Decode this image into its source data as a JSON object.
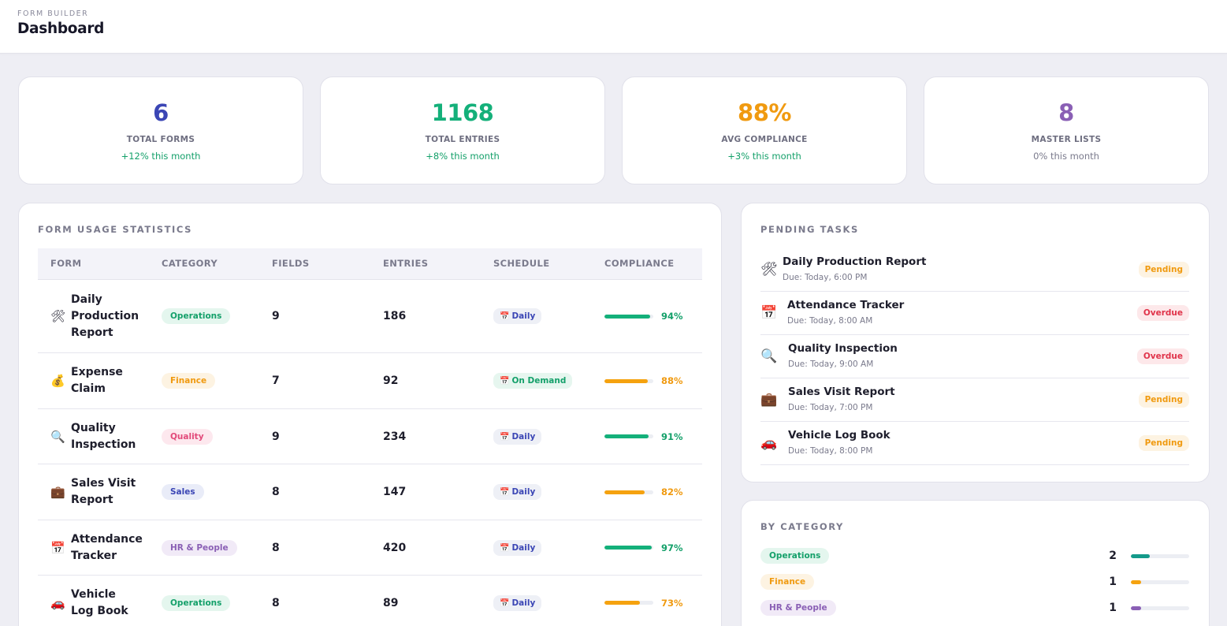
{
  "header": {
    "breadcrumb": "FORM BUILDER",
    "title": "Dashboard"
  },
  "stats": [
    {
      "value": "6",
      "label": "TOTAL FORMS",
      "change": "+12% this month",
      "color": "#3b46b5",
      "change_color": "#14a06a"
    },
    {
      "value": "1168",
      "label": "TOTAL ENTRIES",
      "change": "+8% this month",
      "color": "#14b07a",
      "change_color": "#14a06a"
    },
    {
      "value": "88%",
      "label": "AVG COMPLIANCE",
      "change": "+3% this month",
      "color": "#f09a10",
      "change_color": "#14a06a"
    },
    {
      "value": "8",
      "label": "MASTER LISTS",
      "change": "0% this month",
      "color": "#8a5fb5",
      "change_color": "#7a7a8c"
    }
  ],
  "usage": {
    "title": "FORM USAGE STATISTICS",
    "columns": [
      "FORM",
      "CATEGORY",
      "FIELDS",
      "ENTRIES",
      "SCHEDULE",
      "COMPLIANCE"
    ],
    "rows": [
      {
        "icon": "tools-icon",
        "glyph": "🛠",
        "name": "Daily Production Report",
        "category": "Operations",
        "cat_bg": "#e4f6ee",
        "cat_fg": "#14a06a",
        "fields": "9",
        "entries": "186",
        "schedule": "Daily",
        "compliance": "94%",
        "compliance_value": 0.94,
        "bar_color": "#14b07a"
      },
      {
        "icon": "money-bag-icon",
        "glyph": "💰",
        "name": "Expense Claim",
        "category": "Finance",
        "cat_bg": "#fdf3e2",
        "cat_fg": "#f09a10",
        "fields": "7",
        "entries": "92",
        "schedule": "On Demand",
        "compliance": "88%",
        "compliance_value": 0.88,
        "bar_color": "#f5a20f"
      },
      {
        "icon": "magnifier-icon",
        "glyph": "🔍",
        "name": "Quality Inspection",
        "category": "Quality",
        "cat_bg": "#fde8ee",
        "cat_fg": "#e24a7a",
        "fields": "9",
        "entries": "234",
        "schedule": "Daily",
        "compliance": "91%",
        "compliance_value": 0.91,
        "bar_color": "#14b07a"
      },
      {
        "icon": "briefcase-icon",
        "glyph": "💼",
        "name": "Sales Visit Report",
        "category": "Sales",
        "cat_bg": "#e9ecf8",
        "cat_fg": "#3b46b5",
        "fields": "8",
        "entries": "147",
        "schedule": "Daily",
        "compliance": "82%",
        "compliance_value": 0.82,
        "bar_color": "#f5a20f"
      },
      {
        "icon": "calendar-icon",
        "glyph": "📅",
        "name": "Attendance Tracker",
        "category": "HR & People",
        "cat_bg": "#f1eaf7",
        "cat_fg": "#8a5fb5",
        "fields": "8",
        "entries": "420",
        "schedule": "Daily",
        "compliance": "97%",
        "compliance_value": 0.97,
        "bar_color": "#14b07a"
      },
      {
        "icon": "car-icon",
        "glyph": "🚗",
        "name": "Vehicle Log Book",
        "category": "Operations",
        "cat_bg": "#e4f6ee",
        "cat_fg": "#14a06a",
        "fields": "8",
        "entries": "89",
        "schedule": "Daily",
        "compliance": "73%",
        "compliance_value": 0.73,
        "bar_color": "#f5a20f"
      }
    ]
  },
  "tasks": {
    "title": "PENDING TASKS",
    "items": [
      {
        "icon": "tools-icon",
        "glyph": "🛠",
        "name": "Daily Production Report",
        "due": "Due: Today, 6:00 PM",
        "status": "Pending",
        "status_bg": "#fdf3e2",
        "status_fg": "#f09a10"
      },
      {
        "icon": "calendar-icon",
        "glyph": "📅",
        "name": "Attendance Tracker",
        "due": "Due: Today, 8:00 AM",
        "status": "Overdue",
        "status_bg": "#fde8ea",
        "status_fg": "#e0334a"
      },
      {
        "icon": "magnifier-icon",
        "glyph": "🔍",
        "name": "Quality Inspection",
        "due": "Due: Today, 9:00 AM",
        "status": "Overdue",
        "status_bg": "#fde8ea",
        "status_fg": "#e0334a"
      },
      {
        "icon": "briefcase-icon",
        "glyph": "💼",
        "name": "Sales Visit Report",
        "due": "Due: Today, 7:00 PM",
        "status": "Pending",
        "status_bg": "#fdf3e2",
        "status_fg": "#f09a10"
      },
      {
        "icon": "car-icon",
        "glyph": "🚗",
        "name": "Vehicle Log Book",
        "due": "Due: Today, 8:00 PM",
        "status": "Pending",
        "status_bg": "#fdf3e2",
        "status_fg": "#f09a10"
      }
    ]
  },
  "categories": {
    "title": "BY CATEGORY",
    "items": [
      {
        "name": "Operations",
        "count": "2",
        "share": 0.33,
        "bg": "#e4f6ee",
        "fg": "#14a06a",
        "bar": "#149a8a"
      },
      {
        "name": "Finance",
        "count": "1",
        "share": 0.17,
        "bg": "#fdf3e2",
        "fg": "#f09a10",
        "bar": "#f5a20f"
      },
      {
        "name": "HR & People",
        "count": "1",
        "share": 0.17,
        "bg": "#f1eaf7",
        "fg": "#8a5fb5",
        "bar": "#8a5fb5"
      }
    ]
  }
}
